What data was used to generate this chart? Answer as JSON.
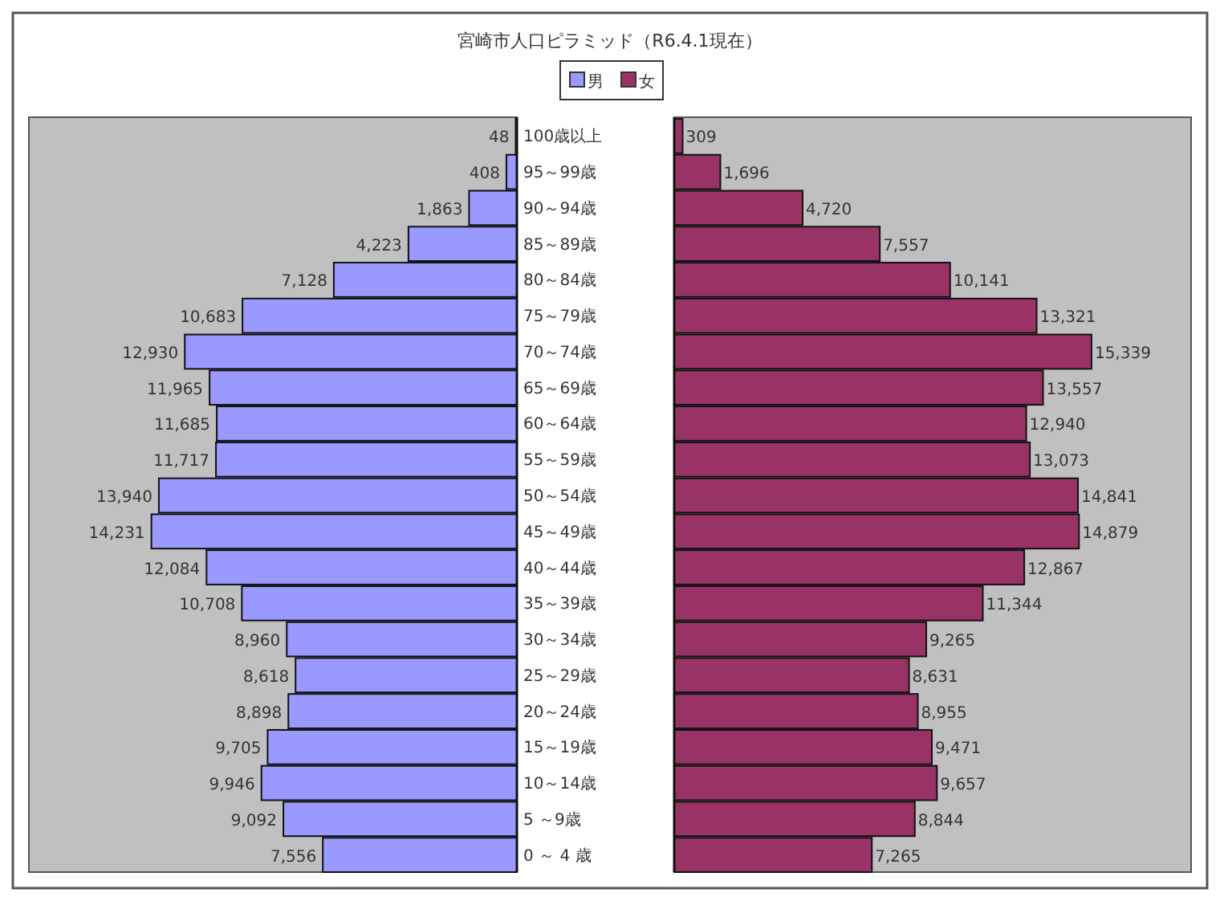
{
  "chart_data": [
    {
      "type": "bar",
      "orientation": "horizontal",
      "title": "宮崎市人口ピラミッド（R6.4.1現在）",
      "categories": [
        "100歳以上",
        "95～99歳",
        "90～94歳",
        "85～89歳",
        "80～84歳",
        "75～79歳",
        "70～74歳",
        "65～69歳",
        "60～64歳",
        "55～59歳",
        "50～54歳",
        "45～49歳",
        "40～44歳",
        "35～39歳",
        "30～34歳",
        "25～29歳",
        "20～24歳",
        "15～19歳",
        "10～14歳",
        "5 ～9歳",
        "0 ～ 4 歳"
      ],
      "series": [
        {
          "name": "男",
          "color": "#9999ff",
          "values": [
            48,
            408,
            1863,
            4223,
            7128,
            10683,
            12930,
            11965,
            11685,
            11717,
            13940,
            14231,
            12084,
            10708,
            8960,
            8618,
            8898,
            9705,
            9946,
            9092,
            7556
          ],
          "value_labels": [
            "48",
            "408",
            "1,863",
            "4,223",
            "7,128",
            "10,683",
            "12,930",
            "11,965",
            "11,685",
            "11,717",
            "13,940",
            "14,231",
            "12,084",
            "10,708",
            "8,960",
            "8,618",
            "8,898",
            "9,705",
            "9,946",
            "9,092",
            "7,556"
          ]
        }
      ],
      "xlim": [
        19000,
        0
      ],
      "legend": "top"
    },
    {
      "type": "bar",
      "orientation": "horizontal",
      "categories": [
        null,
        null,
        null,
        null,
        null,
        null,
        null,
        null,
        null,
        null,
        null,
        null,
        null,
        null,
        null,
        null,
        null,
        null,
        null,
        null,
        null
      ],
      "series": [
        {
          "name": "女",
          "color": "#993366",
          "values": [
            309,
            1696,
            4720,
            7557,
            10141,
            13321,
            15339,
            13557,
            12940,
            13073,
            14841,
            14879,
            12867,
            11344,
            9265,
            8631,
            8955,
            9471,
            9657,
            8844,
            7265
          ],
          "value_labels": [
            "309",
            "1,696",
            "4,720",
            "7,557",
            "10,141",
            "13,321",
            "15,339",
            "13,557",
            "12,940",
            "13,073",
            "14,841",
            "14,879",
            "12,867",
            "11,344",
            "9,265",
            "8,631",
            "8,955",
            "9,471",
            "9,657",
            "8,844",
            "7,265"
          ]
        }
      ],
      "xlim": [
        0,
        19000
      ],
      "legend": "top"
    }
  ]
}
